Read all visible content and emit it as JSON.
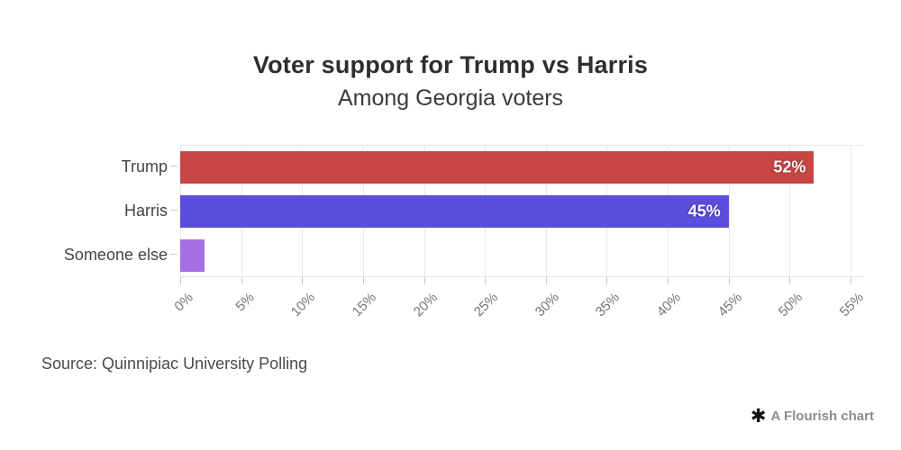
{
  "chart_data": {
    "type": "bar",
    "orientation": "horizontal",
    "title": "Voter support for Trump vs Harris",
    "subtitle": "Among Georgia voters",
    "categories": [
      "Trump",
      "Harris",
      "Someone else"
    ],
    "values": [
      52,
      45,
      2
    ],
    "value_labels": [
      "52%",
      "45%",
      ""
    ],
    "bar_colors": [
      "#c94543",
      "#5c4ddd",
      "#a56ee2"
    ],
    "x_ticks": [
      "0%",
      "5%",
      "10%",
      "15%",
      "20%",
      "25%",
      "30%",
      "35%",
      "40%",
      "45%",
      "50%",
      "55%"
    ],
    "xlim": [
      0,
      55
    ],
    "grid": true,
    "xlabel": "",
    "ylabel": "",
    "source": "Source: Quinnipiac University Polling",
    "credit": "A Flourish chart"
  },
  "colors": {
    "background": "#ffffff",
    "gridline": "#e9e9e9",
    "tick_text": "#757575",
    "title_text": "#2e2e2e",
    "credit_icon": "#111111",
    "credit_text": "#8c8c8c"
  },
  "icons": {
    "flourish_asterisk": "✱"
  }
}
